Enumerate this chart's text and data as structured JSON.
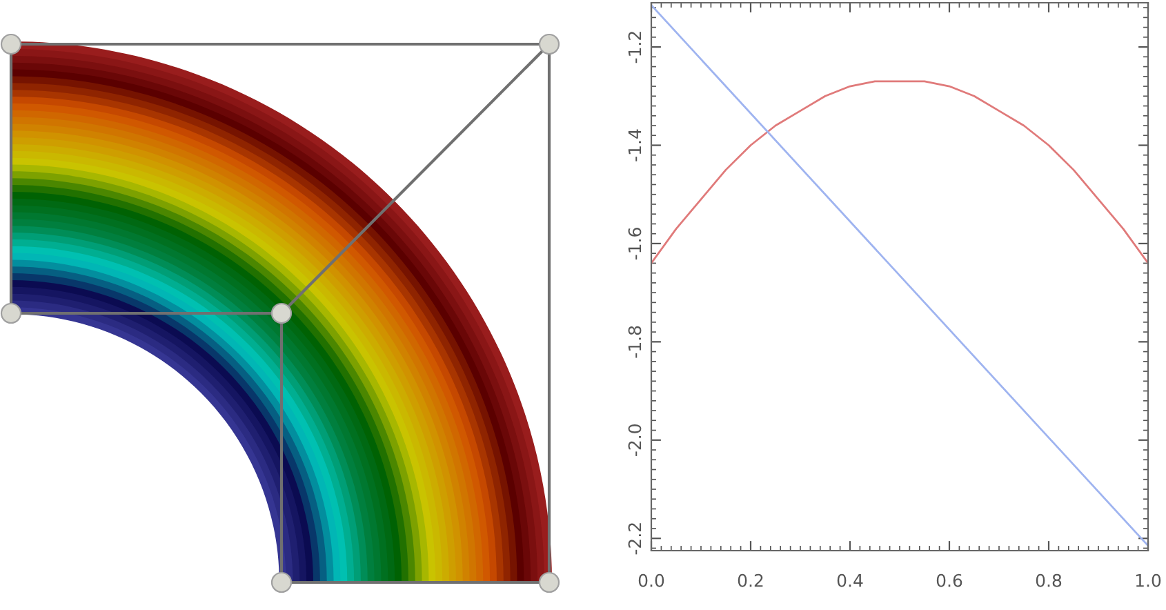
{
  "chart_data": {
    "type": "line",
    "xlim": [
      0.0,
      1.0
    ],
    "ylim": [
      -2.225,
      -1.11
    ],
    "xticks": [
      {
        "value": 0.0,
        "label": "0.0"
      },
      {
        "value": 0.2,
        "label": "0.2"
      },
      {
        "value": 0.4,
        "label": "0.4"
      },
      {
        "value": 0.6,
        "label": "0.6"
      },
      {
        "value": 0.8,
        "label": "0.8"
      },
      {
        "value": 1.0,
        "label": "1.0"
      }
    ],
    "yticks": [
      -1.2,
      -1.4,
      -1.6,
      -1.8,
      {
        "value": -2.0,
        "label": "-2.0"
      },
      -2.2
    ],
    "grid": false,
    "legend": false,
    "marker": "none",
    "line_style": "solid",
    "series": [
      {
        "color": "#e07a7a",
        "x": [
          0.0,
          0.05,
          0.1,
          0.15,
          0.2,
          0.25,
          0.3,
          0.35,
          0.4,
          0.45,
          0.5,
          0.55,
          0.6,
          0.65,
          0.7,
          0.75,
          0.8,
          0.85,
          0.9,
          0.95,
          1.0
        ],
        "values": [
          -1.64,
          -1.57,
          -1.51,
          -1.45,
          -1.4,
          -1.36,
          -1.33,
          -1.3,
          -1.28,
          -1.27,
          -1.27,
          -1.27,
          -1.28,
          -1.3,
          -1.33,
          -1.36,
          -1.4,
          -1.45,
          -1.51,
          -1.57,
          -1.64
        ]
      },
      {
        "color": "#9fb4f0",
        "x": [
          0.0,
          1.0
        ],
        "values": [
          -1.115,
          -2.215
        ]
      }
    ]
  }
}
